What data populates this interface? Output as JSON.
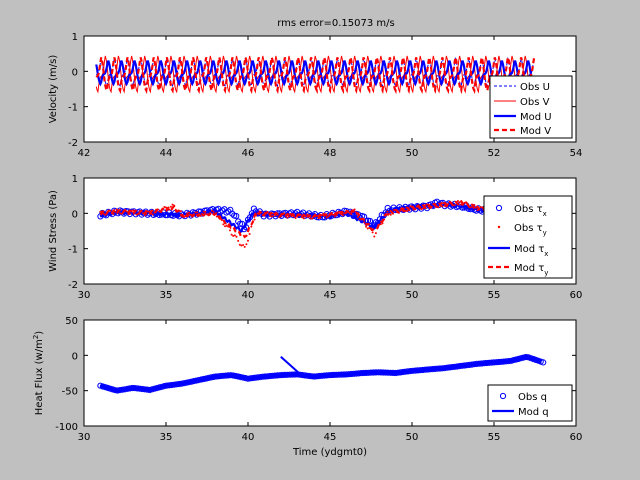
{
  "title": "rms error=0.15073 m/s",
  "colors": {
    "blue": "#0000ff",
    "red": "#ff0000",
    "background": "#c0c0c0",
    "axes_bg": "#ffffff"
  },
  "chart_data": [
    {
      "type": "line",
      "ylabel": "Velocity (m/s)",
      "xlabel": "",
      "xlim": [
        42,
        54
      ],
      "ylim": [
        -2,
        1
      ],
      "xticks": [
        "42",
        "44",
        "46",
        "48",
        "50",
        "52",
        "54"
      ],
      "yticks": [
        "-2",
        "-1",
        "0",
        "1"
      ],
      "legend": {
        "position": "right",
        "entries": [
          {
            "label": "Obs U",
            "sub": "",
            "style": "blue-dashed-thin"
          },
          {
            "label": "Obs V",
            "sub": "",
            "style": "red-solid-thin"
          },
          {
            "label": "Mod U",
            "sub": "",
            "style": "blue-solid-thick"
          },
          {
            "label": "Mod V",
            "sub": "",
            "style": "red-dashed-thick"
          }
        ]
      },
      "series": [
        {
          "name": "Obs U",
          "period": 0.32,
          "amp": 0.45,
          "offset": -0.05,
          "phase": 0.0,
          "wave": "saw",
          "range": [
            42.3,
            53.0
          ]
        },
        {
          "name": "Obs V",
          "period": 0.32,
          "amp": 0.6,
          "offset": -0.1,
          "phase": 1.5,
          "wave": "saw",
          "range": [
            42.3,
            53.0
          ]
        },
        {
          "name": "Mod U",
          "period": 0.32,
          "amp": 0.4,
          "offset": -0.05,
          "phase": 0.15,
          "wave": "saw",
          "range": [
            42.3,
            53.0
          ]
        },
        {
          "name": "Mod V",
          "period": 0.32,
          "amp": 0.55,
          "offset": -0.1,
          "phase": 1.6,
          "wave": "saw",
          "range": [
            42.3,
            53.0
          ]
        }
      ]
    },
    {
      "type": "scatter",
      "ylabel": "Wind Stress (Pa)",
      "xlabel": "",
      "xlim": [
        30,
        60
      ],
      "ylim": [
        -2,
        1
      ],
      "xticks": [
        "30",
        "35",
        "40",
        "45",
        "50",
        "55",
        "60"
      ],
      "yticks": [
        "-2",
        "-1",
        "0",
        "1"
      ],
      "legend": {
        "position": "right",
        "entries": [
          {
            "label": "Obs τ",
            "sub": "x",
            "style": "blue-circle"
          },
          {
            "label": "Obs τ",
            "sub": "y",
            "style": "red-dot"
          },
          {
            "label": "Mod τ",
            "sub": "x",
            "style": "blue-solid-thick"
          },
          {
            "label": "Mod τ",
            "sub": "y",
            "style": "red-dashed-thick"
          }
        ]
      },
      "series": [
        {
          "name": "Obs tau_x",
          "anchors": [
            [
              31,
              -0.05
            ],
            [
              32,
              0.05
            ],
            [
              34,
              0.0
            ],
            [
              36,
              -0.05
            ],
            [
              37,
              0.02
            ],
            [
              38,
              0.1
            ],
            [
              39,
              0.05
            ],
            [
              39.8,
              -0.45
            ],
            [
              40.3,
              0.1
            ],
            [
              41,
              -0.05
            ],
            [
              43,
              0.0
            ],
            [
              44.5,
              -0.1
            ],
            [
              45,
              -0.05
            ],
            [
              46,
              0.05
            ],
            [
              47,
              -0.1
            ],
            [
              47.7,
              -0.35
            ],
            [
              48.5,
              0.1
            ],
            [
              50,
              0.15
            ],
            [
              51,
              0.2
            ],
            [
              51.5,
              0.3
            ],
            [
              52,
              0.25
            ],
            [
              53,
              0.2
            ],
            [
              54,
              0.1
            ],
            [
              55,
              0.05
            ]
          ]
        },
        {
          "name": "Obs tau_y",
          "anchors": [
            [
              31,
              0.0
            ],
            [
              32,
              0.05
            ],
            [
              34,
              0.0
            ],
            [
              35.5,
              0.2
            ],
            [
              36,
              -0.05
            ],
            [
              38,
              0.02
            ],
            [
              39.8,
              -1.0
            ],
            [
              40.5,
              0.0
            ],
            [
              42,
              -0.05
            ],
            [
              44,
              -0.1
            ],
            [
              45,
              -0.05
            ],
            [
              46.5,
              0.05
            ],
            [
              47.7,
              -0.6
            ],
            [
              48.5,
              0.0
            ],
            [
              50,
              0.15
            ],
            [
              51,
              0.2
            ],
            [
              52,
              0.25
            ],
            [
              53,
              0.3
            ],
            [
              54,
              0.15
            ],
            [
              55,
              0.05
            ]
          ]
        },
        {
          "name": "Mod tau_x",
          "anchors": [
            [
              31,
              -0.05
            ],
            [
              32,
              0.02
            ],
            [
              34,
              0.0
            ],
            [
              36,
              -0.05
            ],
            [
              38,
              0.05
            ],
            [
              39.6,
              -0.5
            ],
            [
              40.3,
              0.0
            ],
            [
              42,
              -0.05
            ],
            [
              44,
              -0.05
            ],
            [
              45,
              -0.1
            ],
            [
              46,
              0.0
            ],
            [
              47.7,
              -0.4
            ],
            [
              48.5,
              0.05
            ],
            [
              50,
              0.2
            ],
            [
              51,
              0.2
            ],
            [
              52,
              0.25
            ],
            [
              53,
              0.2
            ],
            [
              54,
              0.1
            ],
            [
              55,
              0.05
            ]
          ]
        },
        {
          "name": "Mod tau_y",
          "anchors": [
            [
              31,
              0.0
            ],
            [
              32,
              0.05
            ],
            [
              34,
              0.02
            ],
            [
              35.5,
              0.15
            ],
            [
              36,
              -0.05
            ],
            [
              38,
              0.0
            ],
            [
              39.8,
              -0.7
            ],
            [
              40.5,
              0.0
            ],
            [
              42,
              -0.05
            ],
            [
              44,
              -0.1
            ],
            [
              45,
              -0.05
            ],
            [
              46.5,
              0.05
            ],
            [
              47.7,
              -0.5
            ],
            [
              48.5,
              0.0
            ],
            [
              50,
              0.15
            ],
            [
              51,
              0.2
            ],
            [
              52,
              0.25
            ],
            [
              53,
              0.3
            ],
            [
              54,
              0.15
            ],
            [
              55,
              0.05
            ]
          ]
        }
      ]
    },
    {
      "type": "line",
      "ylabel": "Heat Flux (w/m",
      "ylabel_sup": "2",
      "ylabel_end": ")",
      "xlabel": "Time (ydgmt0)",
      "xlim": [
        30,
        60
      ],
      "ylim": [
        -100,
        50
      ],
      "xticks": [
        "30",
        "35",
        "40",
        "45",
        "50",
        "55",
        "60"
      ],
      "yticks": [
        "-100",
        "-50",
        "0",
        "50"
      ],
      "legend": {
        "position": "bottom-right",
        "entries": [
          {
            "label": "Obs q",
            "sub": "",
            "style": "blue-circle"
          },
          {
            "label": "Mod q",
            "sub": "",
            "style": "blue-solid-thick"
          }
        ]
      },
      "series": [
        {
          "name": "Obs q",
          "anchors": [
            [
              31,
              -43
            ],
            [
              32,
              -50
            ],
            [
              33,
              -46
            ],
            [
              34,
              -49
            ],
            [
              35,
              -43
            ],
            [
              36,
              -40
            ],
            [
              37,
              -35
            ],
            [
              38,
              -30
            ],
            [
              39,
              -28
            ],
            [
              40,
              -33
            ],
            [
              41,
              -30
            ],
            [
              42,
              -28
            ],
            [
              43,
              -27
            ],
            [
              44,
              -30
            ],
            [
              45,
              -28
            ],
            [
              46,
              -27
            ],
            [
              47,
              -25
            ],
            [
              48,
              -24
            ],
            [
              49,
              -25
            ],
            [
              50,
              -22
            ],
            [
              51,
              -20
            ],
            [
              52,
              -18
            ],
            [
              53,
              -15
            ],
            [
              54,
              -12
            ],
            [
              55,
              -10
            ],
            [
              56,
              -8
            ],
            [
              57,
              -2
            ],
            [
              58,
              -10
            ]
          ]
        },
        {
          "name": "Mod q",
          "anchors": [
            [
              31,
              -43
            ],
            [
              32,
              -50
            ],
            [
              33,
              -46
            ],
            [
              34,
              -49
            ],
            [
              35,
              -43
            ],
            [
              36,
              -40
            ],
            [
              37,
              -35
            ],
            [
              38,
              -30
            ],
            [
              39,
              -28
            ],
            [
              40,
              -33
            ],
            [
              41,
              -30
            ],
            [
              42,
              -28
            ],
            [
              43,
              -27
            ],
            [
              44,
              -30
            ],
            [
              45,
              -28
            ],
            [
              46,
              -27
            ],
            [
              47,
              -25
            ],
            [
              48,
              -24
            ],
            [
              49,
              -25
            ],
            [
              50,
              -22
            ],
            [
              51,
              -20
            ],
            [
              52,
              -18
            ],
            [
              53,
              -15
            ],
            [
              54,
              -12
            ],
            [
              55,
              -10
            ],
            [
              56,
              -8
            ],
            [
              57,
              -2
            ],
            [
              58,
              -10
            ]
          ]
        },
        {
          "name": "Mod q spike",
          "anchors": [
            [
              42,
              -2
            ],
            [
              43.2,
              -27
            ]
          ]
        }
      ]
    }
  ]
}
